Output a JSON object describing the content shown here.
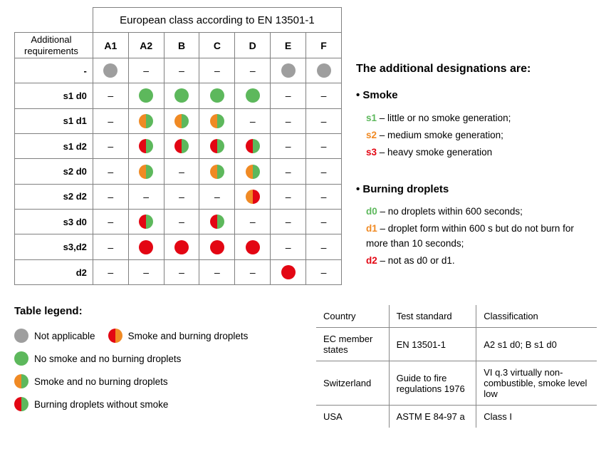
{
  "colors": {
    "gray": "#9e9e9e",
    "green": "#5db85c",
    "orange": "#f08a24",
    "red": "#e30613",
    "s1": "#5db85c",
    "s2": "#f08a24",
    "s3": "#e30613",
    "d0": "#5db85c",
    "d1": "#f08a24",
    "d2": "#e30613"
  },
  "main_table": {
    "title": "European class according to EN 13501-1",
    "row_header_label": "Additional requirements",
    "columns": [
      "A1",
      "A2",
      "B",
      "C",
      "D",
      "E",
      "F"
    ],
    "rows": [
      {
        "label": "-",
        "cells": [
          "gray",
          "-",
          "-",
          "-",
          "-",
          "gray",
          "gray"
        ]
      },
      {
        "label": "s1 d0",
        "cells": [
          "-",
          "green",
          "green",
          "green",
          "green",
          "-",
          "-"
        ]
      },
      {
        "label": "s1 d1",
        "cells": [
          "-",
          "orange/green",
          "orange/green",
          "orange/green",
          "-",
          "-",
          "-"
        ]
      },
      {
        "label": "s1 d2",
        "cells": [
          "-",
          "red/green",
          "red/green",
          "red/green",
          "red/green",
          "-",
          "-"
        ]
      },
      {
        "label": "s2 d0",
        "cells": [
          "-",
          "orange/green",
          "-",
          "orange/green",
          "orange/green",
          "-",
          "-"
        ]
      },
      {
        "label": "s2 d2",
        "cells": [
          "-",
          "-",
          "-",
          "-",
          "orange/red",
          "-",
          "-"
        ]
      },
      {
        "label": "s3 d0",
        "cells": [
          "-",
          "red/green",
          "-",
          "red/green",
          "-",
          "-",
          "-"
        ]
      },
      {
        "label": "s3,d2",
        "cells": [
          "-",
          "red",
          "red",
          "red",
          "red",
          "-",
          "-"
        ]
      },
      {
        "label": "d2",
        "cells": [
          "-",
          "-",
          "-",
          "-",
          "-",
          "red",
          "-"
        ]
      }
    ]
  },
  "designations": {
    "heading": "The additional designations are:",
    "groups": [
      {
        "title": "Smoke",
        "items": [
          {
            "code": "s1",
            "color": "s1",
            "text": "– little or no smoke generation;"
          },
          {
            "code": "s2",
            "color": "s2",
            "text": "– medium smoke generation;"
          },
          {
            "code": "s3",
            "color": "s3",
            "text": "– heavy smoke generation"
          }
        ]
      },
      {
        "title": "Burning droplets",
        "items": [
          {
            "code": "d0",
            "color": "d0",
            "text": "– no droplets within 600 seconds;"
          },
          {
            "code": "d1",
            "color": "d1",
            "text": "– droplet form within 600 s but do not burn for more than 10 seconds;"
          },
          {
            "code": "d2",
            "color": "d2",
            "text": "– not as d0 or d1."
          }
        ]
      }
    ]
  },
  "legend": {
    "title": "Table legend:",
    "items": [
      {
        "mark": "gray",
        "text": "Not applicable"
      },
      {
        "mark": "red/orange",
        "text": "Smoke and burning droplets"
      },
      {
        "mark": "green",
        "text": "No smoke and no burning droplets"
      },
      {
        "mark": "orange/green",
        "text": "Smoke and no burning droplets"
      },
      {
        "mark": "red/green",
        "text": "Burning droplets without smoke"
      }
    ]
  },
  "country_table": {
    "headers": [
      "Country",
      "Test standard",
      "Classification"
    ],
    "rows": [
      [
        "EC member states",
        "EN 13501-1",
        "A2 s1 d0; B s1 d0"
      ],
      [
        "Switzerland",
        "Guide to fire regulations 1976",
        "VI q.3 virtually non-combustible, smoke level low"
      ],
      [
        "USA",
        "ASTM E 84-97 a",
        "Class I"
      ]
    ]
  }
}
